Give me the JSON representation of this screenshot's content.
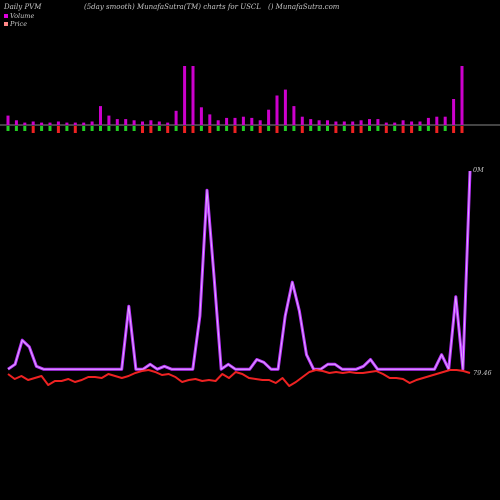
{
  "header": {
    "left": "Daily PVM",
    "middle": "(5day smooth) MunafaSutra(TM) charts for USCL",
    "right": "() MunafaSutra.com"
  },
  "legend": [
    {
      "label": "Volume",
      "color": "#dd00dd"
    },
    {
      "label": "Price",
      "color": "#ff8888"
    }
  ],
  "colors": {
    "volume_line": "#cc66ff",
    "volume_line_outline": "#bb33ff",
    "price_line": "#ee2222",
    "bar_up": "#cc00cc",
    "bar_down_green": "#22cc22",
    "bar_down_red": "#ee2222",
    "baseline": "#888888"
  },
  "chart_data": [
    {
      "type": "bar",
      "title": "",
      "series": [
        {
          "name": "Volume",
          "values": [
            8,
            4,
            2,
            3,
            2,
            2,
            3,
            2,
            2,
            2,
            3,
            16,
            8,
            5,
            5,
            4,
            3,
            4,
            3,
            2,
            12,
            50,
            50,
            15,
            9,
            4,
            6,
            6,
            7,
            6,
            4,
            13,
            25,
            30,
            16,
            7,
            5,
            4,
            4,
            3,
            3,
            3,
            4,
            5,
            5,
            2,
            2,
            4,
            3,
            3,
            6,
            7,
            7,
            22,
            50
          ]
        },
        {
          "name": "Direction",
          "values": [
            "g",
            "g",
            "g",
            "r",
            "g",
            "g",
            "r",
            "g",
            "r",
            "g",
            "g",
            "g",
            "g",
            "g",
            "g",
            "g",
            "r",
            "r",
            "g",
            "r",
            "g",
            "r",
            "r",
            "g",
            "r",
            "g",
            "g",
            "r",
            "g",
            "g",
            "r",
            "g",
            "r",
            "g",
            "g",
            "r",
            "g",
            "g",
            "g",
            "r",
            "g",
            "r",
            "r",
            "g",
            "g",
            "r",
            "g",
            "r",
            "r",
            "g",
            "g",
            "r",
            "g",
            "r",
            "r"
          ]
        }
      ]
    },
    {
      "type": "line",
      "title": "",
      "y_top_label": "0M",
      "y_last_label": "79.46",
      "series": [
        {
          "name": "Volume",
          "values": [
            5,
            10,
            35,
            28,
            8,
            5,
            5,
            5,
            5,
            5,
            5,
            5,
            5,
            5,
            5,
            5,
            5,
            70,
            5,
            5,
            10,
            5,
            8,
            5,
            5,
            5,
            5,
            60,
            190,
            100,
            5,
            10,
            5,
            5,
            5,
            15,
            12,
            5,
            5,
            60,
            95,
            65,
            20,
            5,
            5,
            10,
            10,
            5,
            5,
            5,
            8,
            15,
            5,
            5,
            5,
            5,
            5,
            5,
            5,
            5,
            5,
            20,
            5,
            80,
            5,
            210
          ]
        },
        {
          "name": "Price",
          "values": [
            2,
            -3,
            0,
            -4,
            -2,
            0,
            -9,
            -5,
            -5,
            -3,
            -6,
            -4,
            -1,
            -1,
            -2,
            2,
            0,
            -2,
            0,
            3,
            5,
            6,
            4,
            1,
            2,
            -1,
            -6,
            -4,
            -3,
            -5,
            -4,
            -5,
            2,
            -2,
            4,
            2,
            -2,
            -3,
            -4,
            -4,
            -7,
            -2,
            -10,
            -6,
            -1,
            4,
            6,
            5,
            3,
            4,
            3,
            4,
            3,
            3,
            4,
            5,
            2,
            -2,
            -2,
            -3,
            -7,
            -4,
            -2,
            0,
            2,
            4,
            6,
            6,
            5,
            3
          ]
        }
      ]
    }
  ]
}
